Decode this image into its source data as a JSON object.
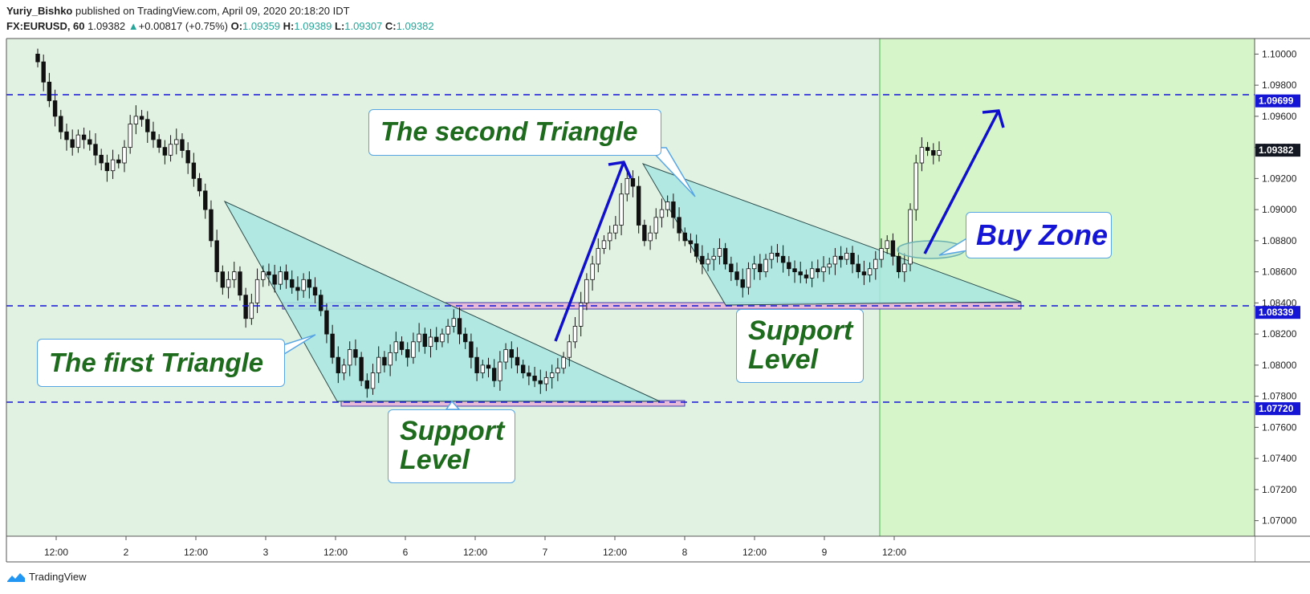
{
  "header": {
    "author": "Yuriy_Bishko",
    "published_text": "published on TradingView.com, April 09, 2020 20:18:20 IDT",
    "symbol": "FX:EURUSD, 60",
    "last_price": "1.09382",
    "change_arrow": "▲",
    "change": "+0.00817 (+0.75%)",
    "o_label": "O:",
    "o_value": "1.09359",
    "h_label": "H:",
    "h_value": "1.09389",
    "l_label": "L:",
    "l_value": "1.09307",
    "c_label": "C:",
    "c_value": "1.09382"
  },
  "annotations": {
    "first_triangle": "The first Triangle",
    "second_triangle": "The second Triangle",
    "support_level_1_line1": "Support",
    "support_level_1_line2": "Level",
    "support_level_2_line1": "Support",
    "support_level_2_line2": "Level",
    "buy_zone": "Buy Zone"
  },
  "footer": {
    "brand": "TradingView",
    "logo_icon": "tradingview-logo-icon"
  },
  "colors": {
    "bg_history": "#e2f2e2",
    "bg_projection": "#d6f6c9",
    "triangle_fill": "#a8e6e0",
    "support_band": "#e8b8d8",
    "level_line": "#1515d6",
    "price_tag": "#1515d6",
    "arrow": "#1010cc",
    "callout_text": "#1e6b1e",
    "buy_zone_text": "#1515d6"
  },
  "chart_data": {
    "type": "candlestick",
    "symbol": "FX:EURUSD",
    "timeframe": "60",
    "ylim": [
      1.069,
      1.101
    ],
    "y_ticks": [
      "1.10000",
      "1.09800",
      "1.09600",
      "1.09400",
      "1.09200",
      "1.09000",
      "1.08800",
      "1.08600",
      "1.08400",
      "1.08200",
      "1.08000",
      "1.07800",
      "1.07600",
      "1.07400",
      "1.07200",
      "1.07000"
    ],
    "x_ticks": [
      "12:00",
      "2",
      "12:00",
      "3",
      "12:00",
      "6",
      "12:00",
      "7",
      "12:00",
      "8",
      "12:00",
      "9",
      "12:00"
    ],
    "horizontal_levels": [
      {
        "price": 1.09699,
        "label": "1.09699"
      },
      {
        "price": 1.08339,
        "label": "1.08339"
      },
      {
        "price": 1.0772,
        "label": "1.07720"
      }
    ],
    "current_price_label": "1.09382",
    "closes": [
      1.0995,
      1.0982,
      1.097,
      1.096,
      1.095,
      1.0945,
      1.094,
      1.0948,
      1.0945,
      1.0942,
      1.0935,
      1.093,
      1.0925,
      1.0932,
      1.093,
      1.094,
      1.0955,
      1.096,
      1.0958,
      1.095,
      1.0945,
      1.094,
      1.0935,
      1.0942,
      1.0945,
      1.0938,
      1.093,
      1.092,
      1.0912,
      1.09,
      1.088,
      1.086,
      1.085,
      1.0855,
      1.086,
      1.0845,
      1.083,
      1.084,
      1.0855,
      1.086,
      1.0858,
      1.0852,
      1.086,
      1.0855,
      1.085,
      1.0848,
      1.0855,
      1.085,
      1.0845,
      1.0835,
      1.082,
      1.0805,
      1.0795,
      1.08,
      1.081,
      1.0805,
      1.079,
      1.0785,
      1.0795,
      1.0805,
      1.08,
      1.0808,
      1.0815,
      1.081,
      1.0805,
      1.0815,
      1.082,
      1.0812,
      1.0818,
      1.0815,
      1.082,
      1.0825,
      1.083,
      1.082,
      1.0815,
      1.0805,
      1.0795,
      1.08,
      1.0798,
      1.079,
      1.0802,
      1.081,
      1.0805,
      1.08,
      1.0795,
      1.0793,
      1.079,
      1.0788,
      1.0792,
      1.0795,
      1.0798,
      1.0805,
      1.0815,
      1.0825,
      1.084,
      1.0855,
      1.0865,
      1.0875,
      1.088,
      1.0885,
      1.089,
      1.091,
      1.092,
      1.0915,
      1.089,
      1.088,
      1.0885,
      1.0895,
      1.09,
      1.0905,
      1.0895,
      1.0885,
      1.088,
      1.0878,
      1.087,
      1.0865,
      1.0868,
      1.087,
      1.0875,
      1.0865,
      1.086,
      1.0855,
      1.085,
      1.0862,
      1.0865,
      1.086,
      1.0868,
      1.0872,
      1.087,
      1.0866,
      1.0862,
      1.086,
      1.0858,
      1.0856,
      1.0862,
      1.086,
      1.0863,
      1.0865,
      1.087,
      1.0868,
      1.0872,
      1.0865,
      1.086,
      1.0858,
      1.0862,
      1.0868,
      1.0875,
      1.088,
      1.087,
      1.086,
      1.0865,
      1.09,
      1.093,
      1.094,
      1.0938,
      1.0935,
      1.0938
    ]
  }
}
